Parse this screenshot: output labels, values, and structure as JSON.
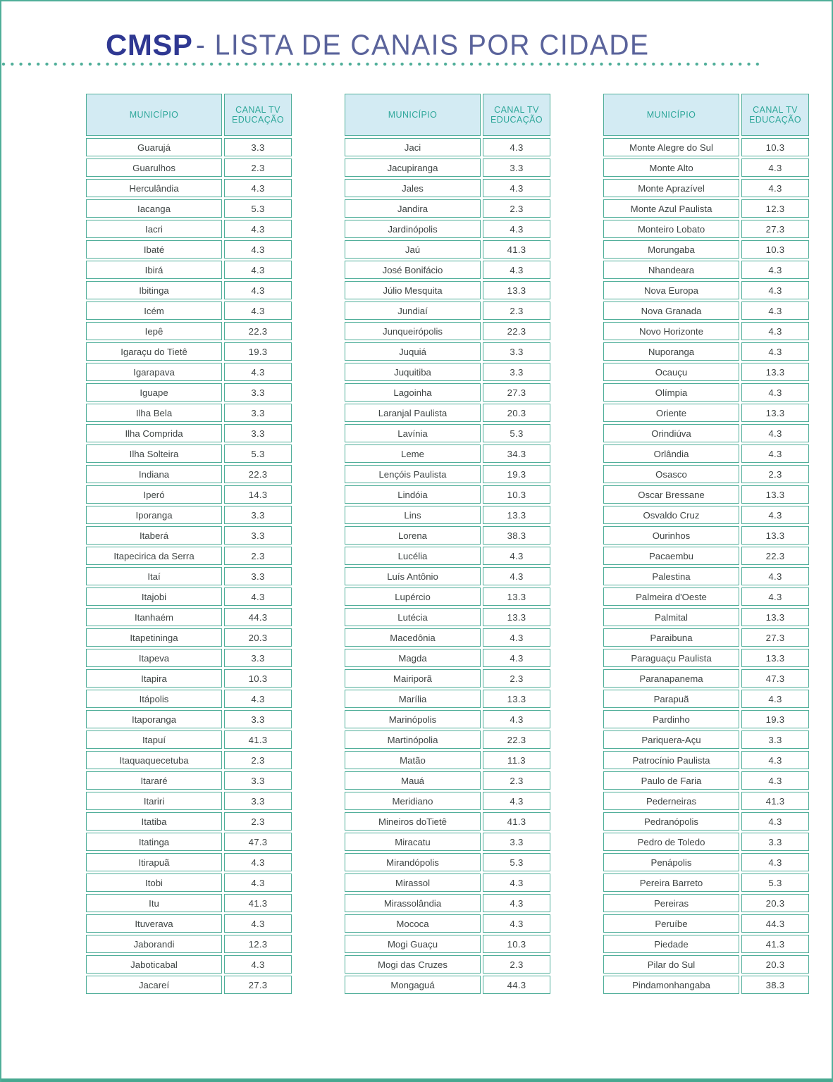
{
  "header": {
    "brand": "CMSP",
    "subtitle": "- LISTA DE CANAIS POR CIDADE"
  },
  "colors": {
    "teal": "#4FAE99",
    "teal-dark": "#47A890",
    "header-bg": "#D3EBF3",
    "header-text": "#2EA79A",
    "brand-navy": "#2F3892",
    "subtitle-blue": "#5A639B",
    "body-text": "#3E4443"
  },
  "table_header": {
    "municipio": "MUNICÍPIO",
    "canal": "CANAL TV EDUCAÇÃO"
  },
  "tables": [
    {
      "rows": [
        {
          "city": "Guarujá",
          "channel": "3.3"
        },
        {
          "city": "Guarulhos",
          "channel": "2.3"
        },
        {
          "city": "Herculândia",
          "channel": "4.3"
        },
        {
          "city": "Iacanga",
          "channel": "5.3"
        },
        {
          "city": "Iacri",
          "channel": "4.3"
        },
        {
          "city": "Ibaté",
          "channel": "4.3"
        },
        {
          "city": "Ibirá",
          "channel": "4.3"
        },
        {
          "city": "Ibitinga",
          "channel": "4.3"
        },
        {
          "city": "Icém",
          "channel": "4.3"
        },
        {
          "city": "Iepê",
          "channel": "22.3"
        },
        {
          "city": "Igaraçu do Tietê",
          "channel": "19.3"
        },
        {
          "city": "Igarapava",
          "channel": "4.3"
        },
        {
          "city": "Iguape",
          "channel": "3.3"
        },
        {
          "city": "Ilha Bela",
          "channel": "3.3"
        },
        {
          "city": "Ilha Comprida",
          "channel": "3.3"
        },
        {
          "city": "Ilha Solteira",
          "channel": "5.3"
        },
        {
          "city": "Indiana",
          "channel": "22.3"
        },
        {
          "city": "Iperó",
          "channel": "14.3"
        },
        {
          "city": "Iporanga",
          "channel": "3.3"
        },
        {
          "city": "Itaberá",
          "channel": "3.3"
        },
        {
          "city": "Itapecirica da Serra",
          "channel": "2.3"
        },
        {
          "city": "Itaí",
          "channel": "3.3"
        },
        {
          "city": "Itajobi",
          "channel": "4.3"
        },
        {
          "city": "Itanhaém",
          "channel": "44.3"
        },
        {
          "city": "Itapetininga",
          "channel": "20.3"
        },
        {
          "city": "Itapeva",
          "channel": "3.3"
        },
        {
          "city": "Itapira",
          "channel": "10.3"
        },
        {
          "city": "Itápolis",
          "channel": "4.3"
        },
        {
          "city": "Itaporanga",
          "channel": "3.3"
        },
        {
          "city": "Itapuí",
          "channel": "41.3"
        },
        {
          "city": "Itaquaquecetuba",
          "channel": "2.3"
        },
        {
          "city": "Itararé",
          "channel": "3.3"
        },
        {
          "city": "Itariri",
          "channel": "3.3"
        },
        {
          "city": "Itatiba",
          "channel": "2.3"
        },
        {
          "city": "Itatinga",
          "channel": "47.3"
        },
        {
          "city": "Itirapuã",
          "channel": "4.3"
        },
        {
          "city": "Itobi",
          "channel": "4.3"
        },
        {
          "city": "Itu",
          "channel": "41.3"
        },
        {
          "city": "Ituverava",
          "channel": "4.3"
        },
        {
          "city": "Jaborandi",
          "channel": "12.3"
        },
        {
          "city": "Jaboticabal",
          "channel": "4.3"
        },
        {
          "city": "Jacareí",
          "channel": "27.3"
        }
      ]
    },
    {
      "rows": [
        {
          "city": "Jaci",
          "channel": "4.3"
        },
        {
          "city": "Jacupiranga",
          "channel": "3.3"
        },
        {
          "city": "Jales",
          "channel": "4.3"
        },
        {
          "city": "Jandira",
          "channel": "2.3"
        },
        {
          "city": "Jardinópolis",
          "channel": "4.3"
        },
        {
          "city": "Jaú",
          "channel": "41.3"
        },
        {
          "city": "José Bonifácio",
          "channel": "4.3"
        },
        {
          "city": "Júlio Mesquita",
          "channel": "13.3"
        },
        {
          "city": "Jundiaí",
          "channel": "2.3"
        },
        {
          "city": "Junqueirópolis",
          "channel": "22.3"
        },
        {
          "city": "Juquiá",
          "channel": "3.3"
        },
        {
          "city": "Juquitiba",
          "channel": "3.3"
        },
        {
          "city": "Lagoinha",
          "channel": "27.3"
        },
        {
          "city": "Laranjal Paulista",
          "channel": "20.3"
        },
        {
          "city": "Lavínia",
          "channel": "5.3"
        },
        {
          "city": "Leme",
          "channel": "34.3"
        },
        {
          "city": "Lençóis Paulista",
          "channel": "19.3"
        },
        {
          "city": "Lindóia",
          "channel": "10.3"
        },
        {
          "city": "Lins",
          "channel": "13.3"
        },
        {
          "city": "Lorena",
          "channel": "38.3"
        },
        {
          "city": "Lucélia",
          "channel": "4.3"
        },
        {
          "city": "Luís Antônio",
          "channel": "4.3"
        },
        {
          "city": "Lupércio",
          "channel": "13.3"
        },
        {
          "city": "Lutécia",
          "channel": "13.3"
        },
        {
          "city": "Macedônia",
          "channel": "4.3"
        },
        {
          "city": "Magda",
          "channel": "4.3"
        },
        {
          "city": "Mairiporã",
          "channel": "2.3"
        },
        {
          "city": "Marília",
          "channel": "13.3"
        },
        {
          "city": "Marinópolis",
          "channel": "4.3"
        },
        {
          "city": "Martinópolia",
          "channel": "22.3"
        },
        {
          "city": "Matão",
          "channel": "11.3"
        },
        {
          "city": "Mauá",
          "channel": "2.3"
        },
        {
          "city": "Meridiano",
          "channel": "4.3"
        },
        {
          "city": "Mineiros doTietê",
          "channel": "41.3"
        },
        {
          "city": "Miracatu",
          "channel": "3.3"
        },
        {
          "city": "Mirandópolis",
          "channel": "5.3"
        },
        {
          "city": "Mirassol",
          "channel": "4.3"
        },
        {
          "city": "Mirassolândia",
          "channel": "4.3"
        },
        {
          "city": "Mococa",
          "channel": "4.3"
        },
        {
          "city": "Mogi Guaçu",
          "channel": "10.3"
        },
        {
          "city": "Mogi das Cruzes",
          "channel": "2.3"
        },
        {
          "city": "Mongaguá",
          "channel": "44.3"
        }
      ]
    },
    {
      "rows": [
        {
          "city": "Monte Alegre do Sul",
          "channel": "10.3"
        },
        {
          "city": "Monte Alto",
          "channel": "4.3"
        },
        {
          "city": "Monte Aprazível",
          "channel": "4.3"
        },
        {
          "city": "Monte Azul Paulista",
          "channel": "12.3"
        },
        {
          "city": "Monteiro Lobato",
          "channel": "27.3"
        },
        {
          "city": "Morungaba",
          "channel": "10.3"
        },
        {
          "city": "Nhandeara",
          "channel": "4.3"
        },
        {
          "city": "Nova Europa",
          "channel": "4.3"
        },
        {
          "city": "Nova Granada",
          "channel": "4.3"
        },
        {
          "city": "Novo Horizonte",
          "channel": "4.3"
        },
        {
          "city": "Nuporanga",
          "channel": "4.3"
        },
        {
          "city": "Ocauçu",
          "channel": "13.3"
        },
        {
          "city": "Olímpia",
          "channel": "4.3"
        },
        {
          "city": "Oriente",
          "channel": "13.3"
        },
        {
          "city": "Orindiúva",
          "channel": "4.3"
        },
        {
          "city": "Orlândia",
          "channel": "4.3"
        },
        {
          "city": "Osasco",
          "channel": "2.3"
        },
        {
          "city": "Oscar Bressane",
          "channel": "13.3"
        },
        {
          "city": "Osvaldo Cruz",
          "channel": "4.3"
        },
        {
          "city": "Ourinhos",
          "channel": "13.3"
        },
        {
          "city": "Pacaembu",
          "channel": "22.3"
        },
        {
          "city": "Palestina",
          "channel": "4.3"
        },
        {
          "city": "Palmeira d'Oeste",
          "channel": "4.3"
        },
        {
          "city": "Palmital",
          "channel": "13.3"
        },
        {
          "city": "Paraibuna",
          "channel": "27.3"
        },
        {
          "city": "Paraguaçu Paulista",
          "channel": "13.3"
        },
        {
          "city": "Paranapanema",
          "channel": "47.3"
        },
        {
          "city": "Parapuã",
          "channel": "4.3"
        },
        {
          "city": "Pardinho",
          "channel": "19.3"
        },
        {
          "city": "Pariquera-Açu",
          "channel": "3.3"
        },
        {
          "city": "Patrocínio Paulista",
          "channel": "4.3"
        },
        {
          "city": "Paulo de Faria",
          "channel": "4.3"
        },
        {
          "city": "Pederneiras",
          "channel": "41.3"
        },
        {
          "city": "Pedranópolis",
          "channel": "4.3"
        },
        {
          "city": "Pedro de Toledo",
          "channel": "3.3"
        },
        {
          "city": "Penápolis",
          "channel": "4.3"
        },
        {
          "city": "Pereira Barreto",
          "channel": "5.3"
        },
        {
          "city": "Pereiras",
          "channel": "20.3"
        },
        {
          "city": "Peruíbe",
          "channel": "44.3"
        },
        {
          "city": "Piedade",
          "channel": "41.3"
        },
        {
          "city": "Pilar do Sul",
          "channel": "20.3"
        },
        {
          "city": "Pindamonhangaba",
          "channel": "38.3"
        }
      ]
    }
  ]
}
